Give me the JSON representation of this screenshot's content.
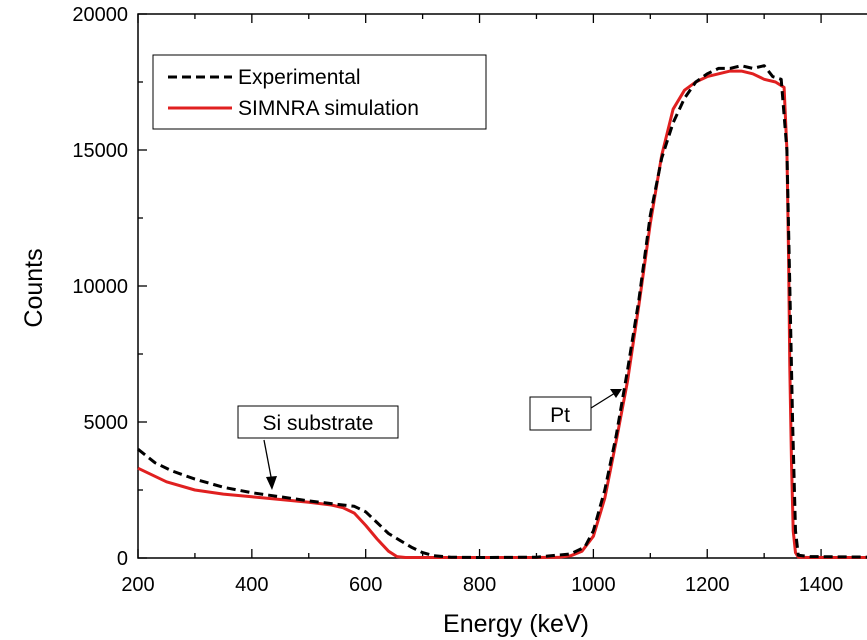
{
  "chart_data": {
    "type": "line",
    "xlabel": "Energy (keV)",
    "ylabel": "Counts",
    "xlim": [
      200,
      1500
    ],
    "ylim": [
      0,
      20000
    ],
    "x_ticks": [
      200,
      400,
      600,
      800,
      1000,
      1200,
      1400
    ],
    "y_ticks": [
      0,
      5000,
      10000,
      15000,
      20000
    ],
    "x_tick_labels": [
      "200",
      "400",
      "600",
      "800",
      "1000",
      "1200",
      "1400"
    ],
    "y_tick_labels": [
      "0",
      "5000",
      "10000",
      "15000",
      "20000"
    ],
    "grid": false,
    "legend_position": "top-left",
    "series": [
      {
        "name": "Experimental",
        "style": "dashed",
        "color": "#000000",
        "x": [
          200,
          230,
          260,
          300,
          350,
          400,
          450,
          500,
          540,
          560,
          580,
          600,
          620,
          640,
          660,
          680,
          700,
          720,
          750,
          800,
          900,
          960,
          985,
          1000,
          1020,
          1040,
          1060,
          1080,
          1100,
          1120,
          1140,
          1160,
          1180,
          1200,
          1220,
          1240,
          1260,
          1280,
          1300,
          1315,
          1330,
          1340,
          1345,
          1350,
          1355,
          1360,
          1380,
          1500
        ],
        "y": [
          4000,
          3500,
          3200,
          2900,
          2600,
          2400,
          2250,
          2100,
          2000,
          1950,
          1900,
          1700,
          1300,
          900,
          650,
          400,
          200,
          80,
          30,
          20,
          30,
          150,
          400,
          1000,
          2500,
          4500,
          6900,
          9500,
          12600,
          14700,
          16000,
          16900,
          17500,
          17800,
          18000,
          18000,
          18100,
          18000,
          18100,
          17700,
          17600,
          15000,
          10000,
          5000,
          1000,
          100,
          50,
          30
        ]
      },
      {
        "name": "SIMNRA simulation",
        "style": "solid",
        "color": "#e02020",
        "x": [
          200,
          250,
          300,
          350,
          400,
          450,
          500,
          540,
          560,
          580,
          600,
          620,
          640,
          655,
          670,
          700,
          800,
          900,
          940,
          960,
          980,
          1000,
          1020,
          1040,
          1060,
          1080,
          1100,
          1120,
          1140,
          1160,
          1180,
          1200,
          1220,
          1240,
          1260,
          1280,
          1300,
          1320,
          1335,
          1340,
          1343,
          1345,
          1348,
          1351,
          1355,
          1360,
          1380,
          1500
        ],
        "y": [
          3300,
          2800,
          2500,
          2350,
          2250,
          2150,
          2050,
          1950,
          1850,
          1650,
          1200,
          700,
          250,
          50,
          20,
          20,
          20,
          20,
          30,
          80,
          250,
          800,
          2200,
          4300,
          6500,
          9300,
          12300,
          14800,
          16500,
          17200,
          17500,
          17700,
          17800,
          17900,
          17900,
          17800,
          17600,
          17500,
          17300,
          15000,
          11000,
          7000,
          3500,
          1000,
          200,
          30,
          20,
          20
        ]
      }
    ],
    "annotations": [
      {
        "text": "Si substrate",
        "target_x": 450,
        "target_y": 2300
      },
      {
        "text": "Pt",
        "target_x": 1065,
        "target_y": 6800
      }
    ]
  }
}
